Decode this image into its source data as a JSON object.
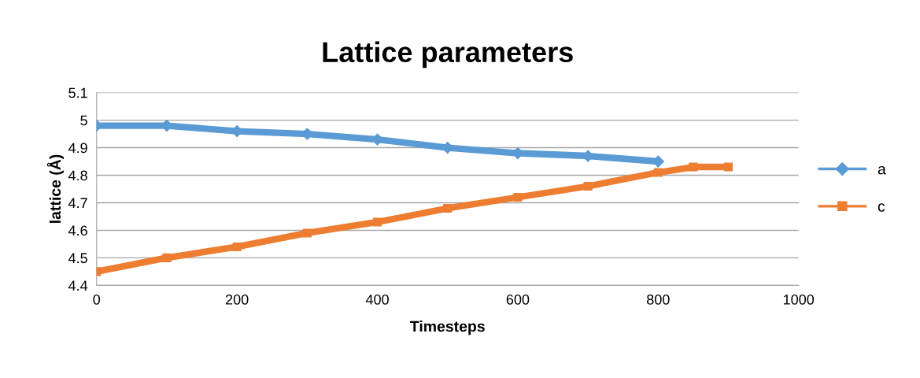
{
  "chart_data": {
    "type": "line",
    "title": "Lattice parameters",
    "xlabel": "Timesteps",
    "ylabel": "lattice (Å)",
    "xlim": [
      0,
      1000
    ],
    "xticks": [
      0,
      200,
      400,
      600,
      800,
      1000
    ],
    "ylim": [
      4.4,
      5.1
    ],
    "yticks": [
      4.4,
      4.5,
      4.6,
      4.7,
      4.8,
      4.9,
      5,
      5.1
    ],
    "grid": "y",
    "legend": "right",
    "series": [
      {
        "name": "a",
        "color": "#5b9bd5",
        "marker": "diamond",
        "x": [
          0,
          100,
          200,
          300,
          400,
          500,
          600,
          700,
          800
        ],
        "values": [
          4.98,
          4.98,
          4.96,
          4.95,
          4.93,
          4.9,
          4.88,
          4.87,
          4.85
        ]
      },
      {
        "name": "c",
        "color": "#ed7d31",
        "marker": "square",
        "x": [
          0,
          100,
          200,
          300,
          400,
          500,
          600,
          700,
          800,
          850,
          900
        ],
        "values": [
          4.45,
          4.5,
          4.54,
          4.59,
          4.63,
          4.68,
          4.72,
          4.76,
          4.81,
          4.83,
          4.83
        ]
      }
    ]
  }
}
